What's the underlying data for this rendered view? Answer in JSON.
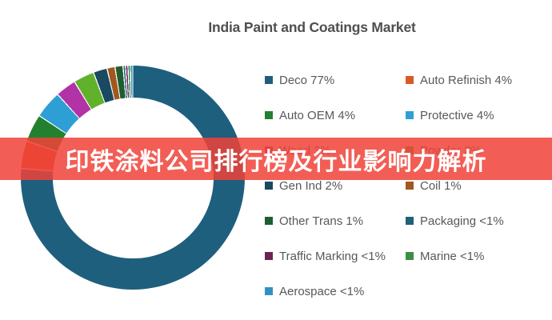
{
  "title": "India Paint and Coatings Market",
  "overlay_banner": {
    "text": "印铁涂料公司排行榜及行业影响力解析",
    "background_color": "#F04237",
    "opacity": 0.85,
    "text_color": "#FFFFFF"
  },
  "chart_data": {
    "type": "pie",
    "subtype": "donut",
    "title": "India Paint and Coatings Market",
    "legend_position": "right",
    "legend_columns": 2,
    "start_angle_deg": 0,
    "direction": "clockwise",
    "segments": [
      {
        "name": "Deco",
        "share_label": "77%",
        "value_pct": 77,
        "display_pct": 76.3,
        "color": "#1E5F7E"
      },
      {
        "name": "Auto Refinish",
        "share_label": "4%",
        "value_pct": 4,
        "display_pct": 4,
        "color": "#D95A28"
      },
      {
        "name": "Auto OEM",
        "share_label": "4%",
        "value_pct": 4,
        "display_pct": 4,
        "color": "#22812F"
      },
      {
        "name": "Protective",
        "share_label": "4%",
        "value_pct": 4,
        "display_pct": 4,
        "color": "#2E9FD4"
      },
      {
        "name": "Wood",
        "share_label": "3%",
        "value_pct": 3,
        "display_pct": 3,
        "color": "#B233A6"
      },
      {
        "name": "Powder",
        "share_label": "3%",
        "value_pct": 3,
        "display_pct": 3,
        "color": "#62B12D"
      },
      {
        "name": "Gen Ind",
        "share_label": "2%",
        "value_pct": 2,
        "display_pct": 2,
        "color": "#1A4A61"
      },
      {
        "name": "Coil",
        "share_label": "1%",
        "value_pct": 1,
        "display_pct": 1.15,
        "color": "#A1571F"
      },
      {
        "name": "Other Trans",
        "share_label": "1%",
        "value_pct": 1,
        "display_pct": 1.15,
        "color": "#1F5D31"
      },
      {
        "name": "Packaging",
        "share_label": "<1%",
        "value_pct": 0.5,
        "display_pct": 0.35,
        "color": "#23607A"
      },
      {
        "name": "Traffic Marking",
        "share_label": "<1%",
        "value_pct": 0.5,
        "display_pct": 0.35,
        "color": "#6F2355"
      },
      {
        "name": "Marine",
        "share_label": "<1%",
        "value_pct": 0.5,
        "display_pct": 0.35,
        "color": "#3E8C46"
      },
      {
        "name": "Aerospace",
        "share_label": "<1%",
        "value_pct": 0.5,
        "display_pct": 0.35,
        "color": "#3092C4"
      }
    ]
  }
}
